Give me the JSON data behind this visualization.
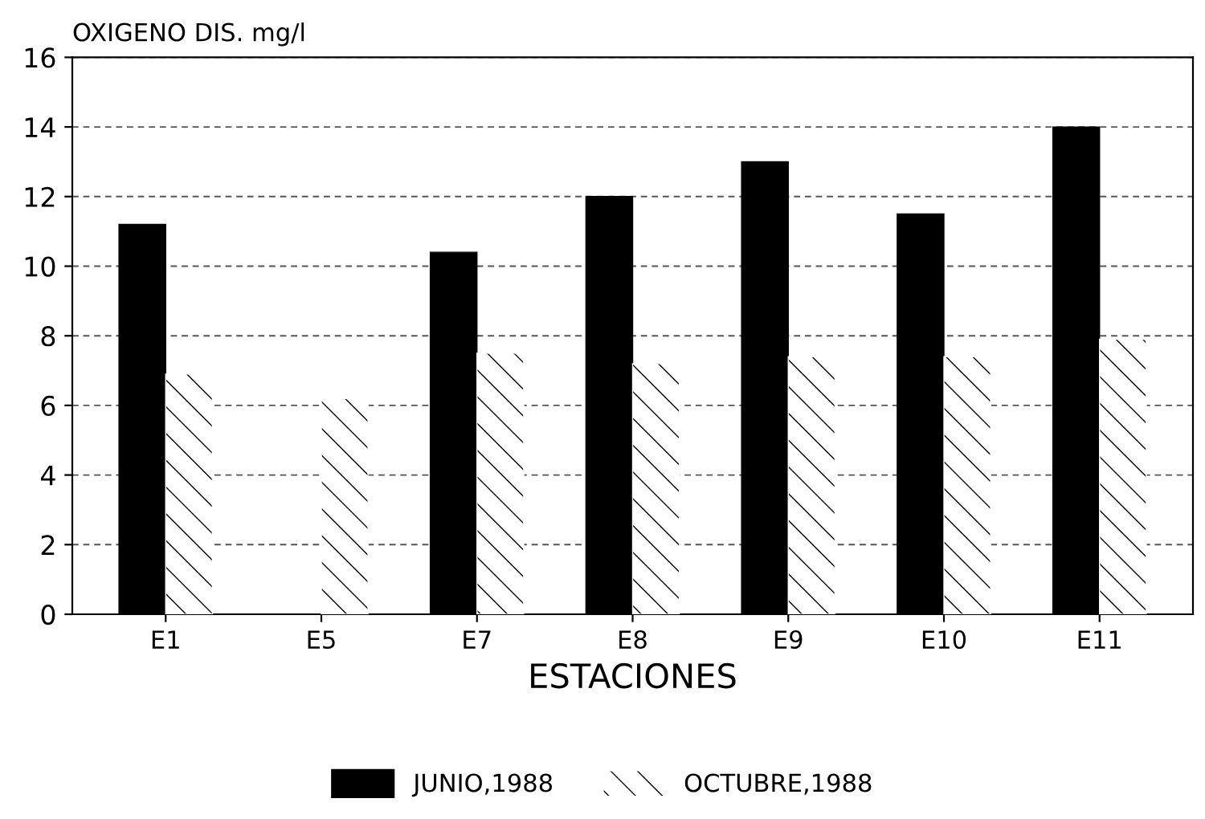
{
  "chart_data": {
    "type": "bar",
    "ylabel": "OXIGENO DIS. mg/l",
    "xlabel": "ESTACIONES",
    "categories": [
      "E1",
      "E5",
      "E7",
      "E8",
      "E9",
      "E10",
      "E11"
    ],
    "series": [
      {
        "name": "JUNIO,1988",
        "color": "#000000",
        "values": [
          11.2,
          null,
          10.4,
          12.0,
          13.0,
          11.5,
          14.0
        ]
      },
      {
        "name": "OCTUBRE,1988",
        "color": "#ffffff",
        "values": [
          6.9,
          6.2,
          7.5,
          7.2,
          7.4,
          7.4,
          7.9
        ]
      }
    ],
    "ylim": [
      0,
      16
    ],
    "yticks": [
      0,
      2,
      4,
      6,
      8,
      10,
      12,
      14,
      16
    ],
    "grid": "y",
    "legend": "bottom"
  }
}
